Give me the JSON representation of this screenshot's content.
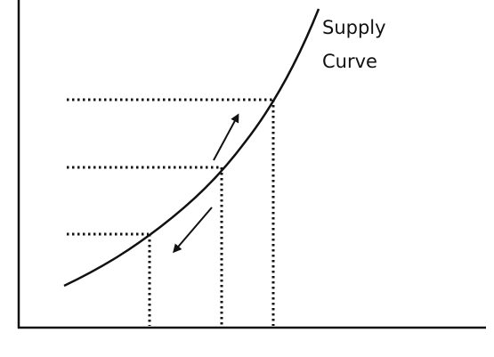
{
  "label": {
    "line1": "Supply",
    "line2": "Curve"
  }
}
